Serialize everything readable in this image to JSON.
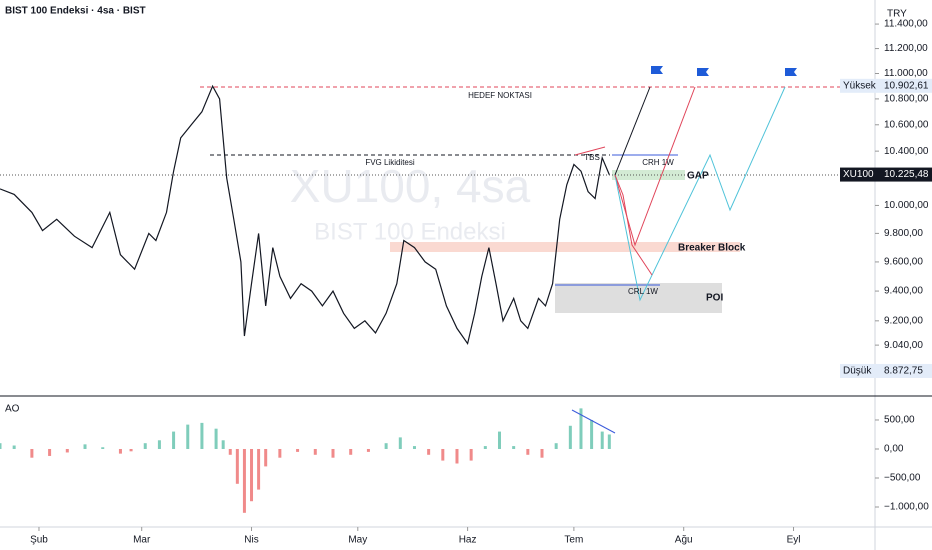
{
  "header": {
    "title": "BIST 100 Endeksi · 4sa · BIST",
    "currency": "TRY"
  },
  "watermark": [
    "XU100, 4sa",
    "BIST 100 Endeksi"
  ],
  "chart_data": [
    {
      "type": "line",
      "log_scale": true,
      "color": "#131722",
      "x": [
        21,
        25,
        30,
        33,
        37,
        42,
        47,
        52,
        55,
        59,
        63,
        65,
        68,
        70,
        72,
        75,
        78,
        81,
        83,
        85,
        87,
        89,
        90,
        92,
        94,
        96,
        98,
        100,
        103,
        106,
        109,
        112,
        115,
        118,
        121,
        124,
        127,
        130,
        133,
        135,
        138,
        141,
        144,
        147,
        150,
        153,
        155,
        157,
        159,
        161,
        163,
        166,
        168,
        170,
        173,
        175,
        177,
        179,
        181,
        183,
        185,
        187,
        189,
        191,
        193
      ],
      "values": [
        10120,
        10080,
        9950,
        9820,
        9900,
        9780,
        9700,
        9950,
        9650,
        9550,
        9800,
        9750,
        9950,
        10250,
        10500,
        10600,
        10700,
        10900,
        10800,
        10200,
        9900,
        9600,
        9100,
        9450,
        9800,
        9300,
        9700,
        9500,
        9350,
        9450,
        9400,
        9300,
        9400,
        9250,
        9150,
        9200,
        9120,
        9250,
        9450,
        9750,
        9700,
        9600,
        9550,
        9300,
        9150,
        9050,
        9250,
        9500,
        9700,
        9450,
        9200,
        9350,
        9200,
        9150,
        9350,
        9300,
        9450,
        9900,
        10150,
        10300,
        10250,
        10100,
        10050,
        10350,
        10225
      ],
      "xlim": [
        21,
        268
      ],
      "xticks": [
        {
          "value": 32,
          "label": "Şub"
        },
        {
          "value": 61,
          "label": "Mar"
        },
        {
          "value": 92,
          "label": "Nis"
        },
        {
          "value": 122,
          "label": "May"
        },
        {
          "value": 153,
          "label": "Haz"
        },
        {
          "value": 183,
          "label": "Tem"
        },
        {
          "value": 214,
          "label": "Ağu"
        },
        {
          "value": 245,
          "label": "Eyl"
        }
      ],
      "ylim": [
        8720,
        11600
      ],
      "yticks": [
        {
          "value": 11400,
          "label": "11.400,00"
        },
        {
          "value": 11200,
          "label": "11.200,00"
        },
        {
          "value": 11000,
          "label": "11.000,00"
        },
        {
          "value": 10800,
          "label": "10.800,00"
        },
        {
          "value": 10600,
          "label": "10.600,00"
        },
        {
          "value": 10400,
          "label": "10.400,00"
        },
        {
          "value": 10000,
          "label": "10.000,00"
        },
        {
          "value": 9800,
          "label": "9.800,00"
        },
        {
          "value": 9600,
          "label": "9.600,00"
        },
        {
          "value": 9400,
          "label": "9.400,00"
        },
        {
          "value": 9200,
          "label": "9.200,00"
        },
        {
          "value": 9040,
          "label": "9.040,00"
        }
      ],
      "price_labels": [
        {
          "name": "Yüksek",
          "value": 10902.61,
          "label": "10.902,61"
        },
        {
          "name": "XU100",
          "value": 10225.48,
          "label": "10.225,48"
        },
        {
          "name": "Düşük",
          "value": 8872.75,
          "label": "8.872,75"
        }
      ],
      "annotations": [
        "HEDEF NOKTASI",
        "FVG Likiditesi",
        "TBS",
        "CRH 1W",
        "GAP",
        "Breaker Block",
        "CRL 1W",
        "POI"
      ]
    },
    {
      "type": "bar",
      "title": "AO",
      "positive_color": "#7fcdbb",
      "negative_color": "#f08a8a",
      "x": [
        21,
        25,
        30,
        35,
        40,
        45,
        50,
        55,
        58,
        62,
        66,
        70,
        74,
        78,
        82,
        84,
        86,
        88,
        90,
        92,
        94,
        96,
        100,
        105,
        110,
        115,
        120,
        125,
        130,
        134,
        138,
        142,
        146,
        150,
        154,
        158,
        162,
        166,
        170,
        174,
        178,
        182,
        185,
        188,
        191,
        193
      ],
      "values": [
        100,
        60,
        -150,
        -120,
        -60,
        80,
        30,
        -80,
        -40,
        100,
        150,
        300,
        420,
        450,
        350,
        150,
        -100,
        -600,
        -1100,
        -900,
        -700,
        -300,
        -150,
        -50,
        -100,
        -150,
        -100,
        -50,
        100,
        200,
        50,
        -100,
        -200,
        -250,
        -200,
        50,
        300,
        50,
        -100,
        -150,
        100,
        400,
        700,
        500,
        300,
        250
      ],
      "ylim": [
        -1310,
        896
      ],
      "yticks": [
        {
          "value": 500,
          "label": "500,00"
        },
        {
          "value": 0,
          "label": "0,00"
        },
        {
          "value": -500,
          "label": "−500,00"
        },
        {
          "value": -1000,
          "label": "−1.000,00"
        }
      ]
    }
  ]
}
